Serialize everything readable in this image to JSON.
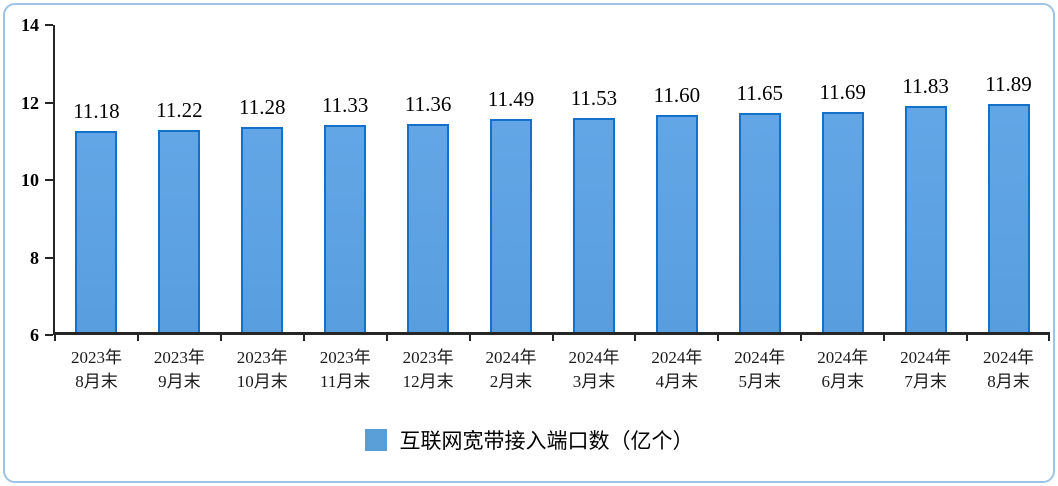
{
  "chart_data": {
    "type": "bar",
    "categories": [
      "2023年\n8月末",
      "2023年\n9月末",
      "2023年\n10月末",
      "2023年\n11月末",
      "2023年\n12月末",
      "2024年\n2月末",
      "2024年\n3月末",
      "2024年\n4月末",
      "2024年\n5月末",
      "2024年\n6月末",
      "2024年\n7月末",
      "2024年\n8月末"
    ],
    "values": [
      11.18,
      11.22,
      11.28,
      11.33,
      11.36,
      11.49,
      11.53,
      11.6,
      11.65,
      11.69,
      11.83,
      11.89
    ],
    "value_labels": [
      "11.18",
      "11.22",
      "11.28",
      "11.33",
      "11.36",
      "11.49",
      "11.53",
      "11.60",
      "11.65",
      "11.69",
      "11.83",
      "11.89"
    ],
    "title": "",
    "xlabel": "",
    "ylabel": "",
    "ylim": [
      6,
      14
    ],
    "yticks": [
      6,
      8,
      10,
      12,
      14
    ],
    "grid": false,
    "legend_position": "bottom",
    "series_name": "互联网宽带接入端口数（亿个）"
  },
  "legend": {
    "label": "互联网宽带接入端口数（亿个）",
    "swatch_color": "#5B9FD8"
  },
  "colors": {
    "bar_fill": "#5CA0E2",
    "bar_border": "#1470C8",
    "axis": "#262626",
    "frame_border": "#9DC3E6",
    "value_label": "#000000",
    "tick_label": "#1a1a1a"
  }
}
